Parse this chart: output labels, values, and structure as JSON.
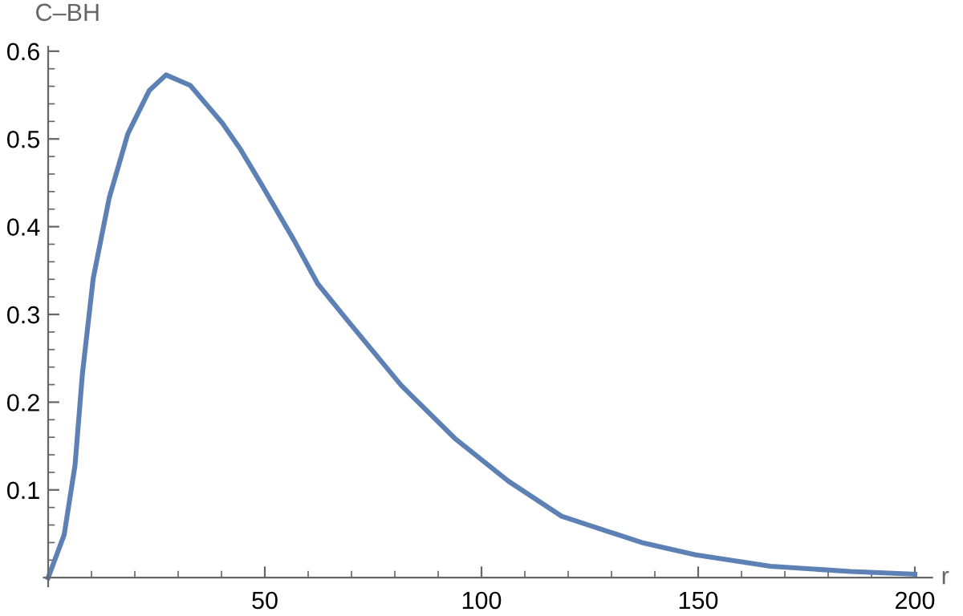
{
  "chart_data": {
    "type": "line",
    "xlabel": "r",
    "ylabel": "C–BH",
    "x": [
      0,
      3.7,
      6.2,
      7.9,
      10.4,
      14.1,
      18.4,
      23.3,
      27.2,
      32.8,
      40.2,
      44.4,
      48.9,
      56.8,
      62.2,
      69.1,
      81.5,
      93.8,
      106.2,
      118.5,
      129.6,
      137,
      149.4,
      166.7,
      185.2,
      200
    ],
    "series": [
      {
        "color": "#5e81b5",
        "values": [
          0,
          0.049,
          0.128,
          0.232,
          0.341,
          0.433,
          0.506,
          0.555,
          0.573,
          0.561,
          0.518,
          0.488,
          0.451,
          0.384,
          0.335,
          0.293,
          0.219,
          0.159,
          0.11,
          0.07,
          0.052,
          0.04,
          0.026,
          0.013,
          0.007,
          0.004
        ]
      }
    ],
    "xlim": [
      -1,
      204
    ],
    "ylim": [
      -0.01,
      0.605
    ],
    "xticks": [
      50,
      100,
      150,
      200
    ],
    "yticks": [
      0.1,
      0.2,
      0.3,
      0.4,
      0.5,
      0.6
    ],
    "grid": false,
    "legend": false,
    "marker": "none",
    "line_style": "solid"
  }
}
